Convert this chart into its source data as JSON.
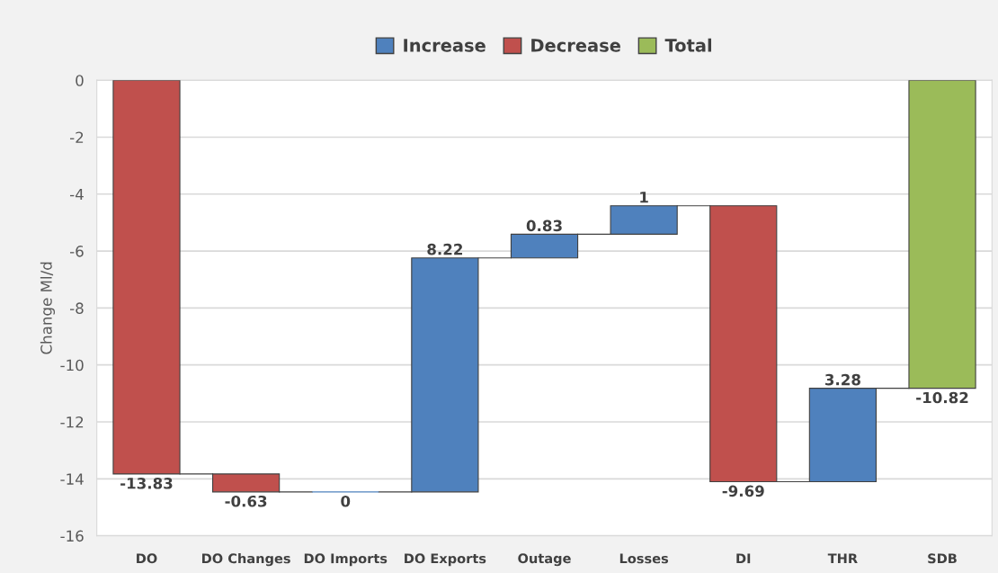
{
  "chart_data": {
    "type": "bar",
    "ylabel": "Change Ml/d",
    "categories": [
      "DO",
      "DO Changes",
      "DO Imports",
      "DO Exports",
      "Outage",
      "Losses",
      "DI",
      "THR",
      "SDB"
    ],
    "series": [
      {
        "name": "Increase",
        "color": "#4f81bd",
        "values": [
          null,
          null,
          0,
          8.22,
          0.83,
          1,
          null,
          3.28,
          null
        ],
        "base": [
          null,
          null,
          -14.46,
          -14.46,
          -6.24,
          -5.41,
          null,
          -14.1,
          null
        ]
      },
      {
        "name": "Decrease",
        "color": "#c0504d",
        "values": [
          -13.83,
          -0.63,
          null,
          null,
          null,
          null,
          -9.69,
          null,
          null
        ],
        "base": [
          0,
          -13.83,
          null,
          null,
          null,
          null,
          -4.41,
          null,
          null
        ]
      },
      {
        "name": "Total",
        "color": "#9bbb59",
        "values": [
          null,
          null,
          null,
          null,
          null,
          null,
          null,
          null,
          -10.82
        ],
        "base": [
          null,
          null,
          null,
          null,
          null,
          null,
          null,
          null,
          0
        ]
      }
    ],
    "ylim": [
      -16,
      0
    ],
    "yticks": [
      -16,
      -14,
      -12,
      -10,
      -8,
      -6,
      -4,
      -2,
      0
    ],
    "grid": "y",
    "legend": "top",
    "data_labels": true
  }
}
